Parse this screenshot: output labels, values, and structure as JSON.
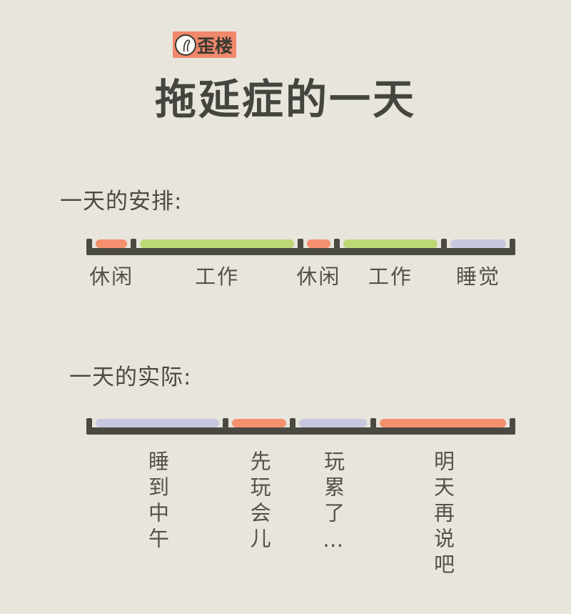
{
  "page": {
    "title": "拖延症的一天",
    "background_color": "#E8E5DD"
  },
  "logo": {
    "label": "歪楼",
    "icon": "crooked-building-icon",
    "background_color": "#F0886C"
  },
  "colors": {
    "bar_line": "#4A4A43",
    "leisure": "#F5906E",
    "work": "#BDD976",
    "sleep": "#C7C7E0",
    "heading_text": "#4B4A43",
    "label_text": "#53524B",
    "title_text": "#454540"
  },
  "chart_data": [
    {
      "type": "bar",
      "subtype": "timeline",
      "title": "一天的安排:",
      "label_orientation": "horizontal",
      "axis": "single horizontal day-timeline with end and boundary ticks",
      "segments": [
        {
          "label": "休闲",
          "color": "#F5906E",
          "fraction": 0.105
        },
        {
          "label": "工作",
          "color": "#BDD976",
          "fraction": 0.394
        },
        {
          "label": "休闲",
          "color": "#F5906E",
          "fraction": 0.086
        },
        {
          "label": "工作",
          "color": "#BDD976",
          "fraction": 0.253
        },
        {
          "label": "睡觉",
          "color": "#C7C7E0",
          "fraction": 0.162
        }
      ]
    },
    {
      "type": "bar",
      "subtype": "timeline",
      "title": "一天的实际:",
      "label_orientation": "vertical",
      "axis": "single horizontal day-timeline with end and boundary ticks",
      "segments": [
        {
          "label": "睡到中午",
          "color": "#C7C7E0",
          "fraction": 0.322
        },
        {
          "label": "先玩会儿",
          "color": "#F5906E",
          "fraction": 0.159
        },
        {
          "label": "玩累了…",
          "color": "#C7C7E0",
          "fraction": 0.19
        },
        {
          "label": "明天再说吧",
          "color": "#F5906E",
          "fraction": 0.329
        }
      ]
    }
  ]
}
